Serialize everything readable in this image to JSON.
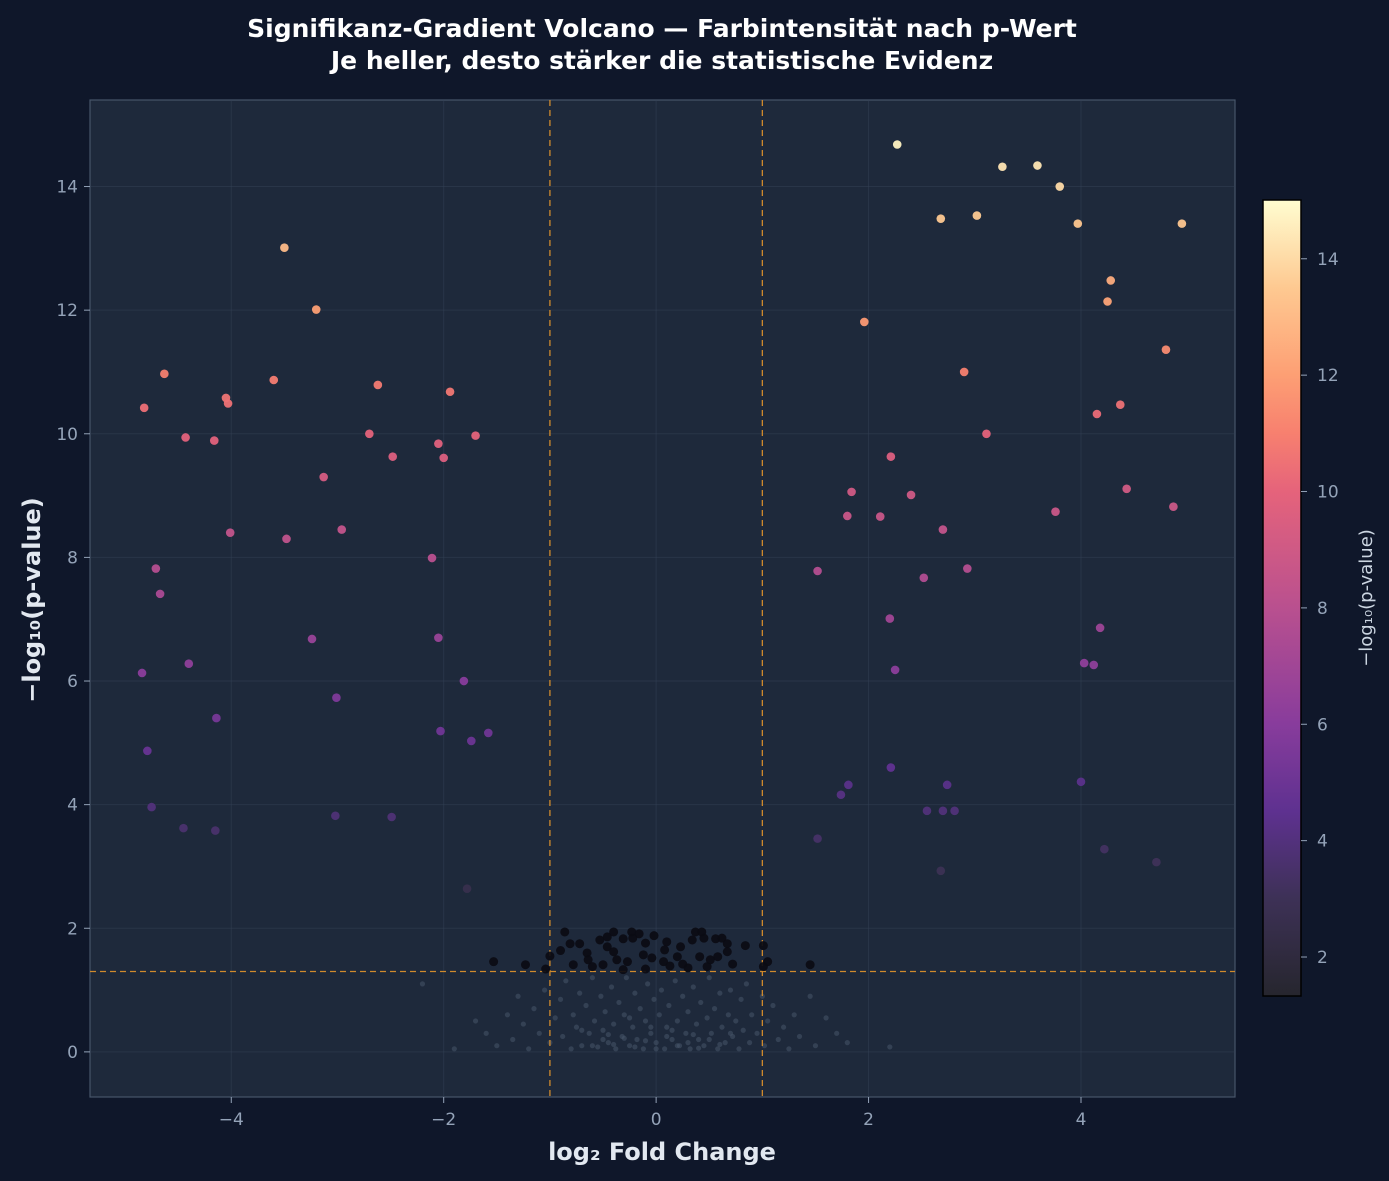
{
  "chart_data": {
    "type": "scatter",
    "title": "Signifikanz-Gradient Volcano — Farbintensität nach p-Wert",
    "subtitle": "Je heller, desto stärker die statistische Evidenz",
    "xlabel": "log₂ Fold Change",
    "ylabel": "−log₁₀(p-value)",
    "xlim": [
      -5.33,
      5.45
    ],
    "ylim": [
      -0.73,
      15.4
    ],
    "x_ticks": [
      -4,
      -2,
      0,
      2,
      4
    ],
    "x_tick_labels": [
      "−4",
      "−2",
      "0",
      "2",
      "4"
    ],
    "y_ticks": [
      0,
      2,
      4,
      6,
      8,
      10,
      12,
      14
    ],
    "y_tick_labels": [
      "0",
      "2",
      "4",
      "6",
      "8",
      "10",
      "12",
      "14"
    ],
    "grid": true,
    "thresholds": {
      "fold_change": [
        -1,
        1
      ],
      "neg_log10_p": 1.3,
      "color": "#d08a2c"
    },
    "colorbar": {
      "label": "−log₁₀(p-value)",
      "range": [
        1.33,
        15.01
      ],
      "ticks": [
        2,
        4,
        6,
        8,
        10,
        12,
        14
      ],
      "tick_labels": [
        "2",
        "4",
        "6",
        "8",
        "10",
        "12",
        "14"
      ],
      "stops": [
        [
          1.33,
          "#26262e"
        ],
        [
          3,
          "#3d3156"
        ],
        [
          4.5,
          "#5e3190"
        ],
        [
          6,
          "#883c9c"
        ],
        [
          8,
          "#b9508f"
        ],
        [
          10,
          "#e5637b"
        ],
        [
          11,
          "#f7806f"
        ],
        [
          12,
          "#fd9f74"
        ],
        [
          13.5,
          "#fec991"
        ],
        [
          15.01,
          "#fffdd0"
        ]
      ]
    },
    "series": [
      {
        "role": "significant",
        "color_by": "neg_log10_p",
        "points": [
          [
            -3.5,
            13.01
          ],
          [
            -3.2,
            12.01
          ],
          [
            -4.63,
            10.97
          ],
          [
            -4.82,
            10.42
          ],
          [
            -4.05,
            10.58
          ],
          [
            -4.03,
            10.49
          ],
          [
            -3.6,
            10.87
          ],
          [
            -4.43,
            9.94
          ],
          [
            -4.16,
            9.89
          ],
          [
            -2.62,
            10.79
          ],
          [
            -1.94,
            10.68
          ],
          [
            -2.7,
            10.0
          ],
          [
            -2.05,
            9.84
          ],
          [
            -1.7,
            9.97
          ],
          [
            -2.48,
            9.63
          ],
          [
            -2.0,
            9.61
          ],
          [
            -3.13,
            9.3
          ],
          [
            -4.01,
            8.4
          ],
          [
            -3.48,
            8.3
          ],
          [
            -2.96,
            8.45
          ],
          [
            -2.11,
            7.99
          ],
          [
            -4.71,
            7.82
          ],
          [
            -4.67,
            7.41
          ],
          [
            -3.24,
            6.68
          ],
          [
            -2.05,
            6.7
          ],
          [
            -4.84,
            6.13
          ],
          [
            -4.4,
            6.28
          ],
          [
            -1.81,
            6.0
          ],
          [
            -3.01,
            5.73
          ],
          [
            -4.14,
            5.4
          ],
          [
            -2.03,
            5.19
          ],
          [
            -1.74,
            5.03
          ],
          [
            -1.58,
            5.16
          ],
          [
            -4.79,
            4.87
          ],
          [
            -4.75,
            3.96
          ],
          [
            -4.45,
            3.62
          ],
          [
            -4.15,
            3.58
          ],
          [
            -3.02,
            3.82
          ],
          [
            -2.49,
            3.8
          ],
          [
            -1.78,
            2.64
          ],
          [
            2.27,
            14.68
          ],
          [
            3.26,
            14.32
          ],
          [
            3.59,
            14.34
          ],
          [
            3.8,
            14.0
          ],
          [
            2.68,
            13.48
          ],
          [
            3.02,
            13.53
          ],
          [
            3.97,
            13.4
          ],
          [
            4.95,
            13.4
          ],
          [
            4.28,
            12.48
          ],
          [
            4.25,
            12.14
          ],
          [
            1.96,
            11.81
          ],
          [
            4.8,
            11.36
          ],
          [
            2.9,
            11.0
          ],
          [
            4.37,
            10.47
          ],
          [
            4.15,
            10.32
          ],
          [
            3.11,
            10.0
          ],
          [
            2.21,
            9.63
          ],
          [
            4.43,
            9.11
          ],
          [
            1.84,
            9.06
          ],
          [
            2.4,
            9.01
          ],
          [
            4.87,
            8.82
          ],
          [
            3.76,
            8.74
          ],
          [
            1.8,
            8.67
          ],
          [
            2.11,
            8.66
          ],
          [
            2.7,
            8.45
          ],
          [
            1.52,
            7.78
          ],
          [
            2.93,
            7.82
          ],
          [
            2.52,
            7.67
          ],
          [
            2.2,
            7.01
          ],
          [
            4.18,
            6.86
          ],
          [
            2.25,
            6.18
          ],
          [
            4.03,
            6.29
          ],
          [
            4.12,
            6.26
          ],
          [
            2.21,
            4.6
          ],
          [
            1.81,
            4.32
          ],
          [
            1.74,
            4.16
          ],
          [
            2.74,
            4.32
          ],
          [
            2.55,
            3.9
          ],
          [
            2.7,
            3.9
          ],
          [
            2.81,
            3.9
          ],
          [
            4.0,
            4.37
          ],
          [
            1.52,
            3.45
          ],
          [
            4.22,
            3.28
          ],
          [
            4.71,
            3.07
          ],
          [
            2.68,
            2.93
          ]
        ]
      },
      {
        "role": "near-threshold",
        "color": "#0b0b14",
        "points": [
          [
            -1.53,
            1.46
          ],
          [
            -1.23,
            1.41
          ],
          [
            -1.04,
            1.34
          ],
          [
            -1.0,
            1.55
          ],
          [
            -0.9,
            1.64
          ],
          [
            -0.86,
            1.94
          ],
          [
            -0.81,
            1.75
          ],
          [
            -0.72,
            1.75
          ],
          [
            -0.78,
            1.41
          ],
          [
            -0.65,
            1.6
          ],
          [
            -0.6,
            1.38
          ],
          [
            -0.53,
            1.81
          ],
          [
            -0.46,
            1.86
          ],
          [
            -0.4,
            1.94
          ],
          [
            -0.46,
            1.7
          ],
          [
            -0.4,
            1.62
          ],
          [
            -0.31,
            1.83
          ],
          [
            -0.31,
            1.33
          ],
          [
            -0.23,
            1.94
          ],
          [
            -0.16,
            1.91
          ],
          [
            -0.22,
            1.84
          ],
          [
            -0.1,
            1.76
          ],
          [
            -0.02,
            1.88
          ],
          [
            -0.12,
            1.57
          ],
          [
            -0.04,
            1.52
          ],
          [
            -0.1,
            1.34
          ],
          [
            0.1,
            1.78
          ],
          [
            0.08,
            1.65
          ],
          [
            0.23,
            1.7
          ],
          [
            0.2,
            1.54
          ],
          [
            0.3,
            1.36
          ],
          [
            0.34,
            1.81
          ],
          [
            0.37,
            1.94
          ],
          [
            0.43,
            1.94
          ],
          [
            0.45,
            1.84
          ],
          [
            0.41,
            1.54
          ],
          [
            0.48,
            1.38
          ],
          [
            0.56,
            1.83
          ],
          [
            0.62,
            1.84
          ],
          [
            0.67,
            1.75
          ],
          [
            0.58,
            1.54
          ],
          [
            0.67,
            1.62
          ],
          [
            0.72,
            1.42
          ],
          [
            0.84,
            1.72
          ],
          [
            1.01,
            1.72
          ],
          [
            1.05,
            1.46
          ],
          [
            1.01,
            1.38
          ],
          [
            1.45,
            1.41
          ],
          [
            -0.37,
            1.49
          ],
          [
            -0.64,
            1.49
          ],
          [
            -0.5,
            1.41
          ],
          [
            -0.27,
            1.46
          ],
          [
            0.07,
            1.46
          ],
          [
            0.13,
            1.39
          ],
          [
            0.25,
            1.42
          ],
          [
            0.51,
            1.49
          ]
        ]
      },
      {
        "role": "not-significant",
        "color": "#475569",
        "points": [
          [
            -2.2,
            1.1
          ],
          [
            -1.9,
            0.05
          ],
          [
            -1.7,
            0.5
          ],
          [
            -1.6,
            0.3
          ],
          [
            -1.5,
            0.1
          ],
          [
            -1.4,
            0.6
          ],
          [
            -1.35,
            0.2
          ],
          [
            -1.3,
            0.9
          ],
          [
            -1.25,
            0.45
          ],
          [
            -1.2,
            0.05
          ],
          [
            -1.15,
            0.7
          ],
          [
            -1.1,
            0.3
          ],
          [
            -1.05,
            1.0
          ],
          [
            -1.0,
            0.15
          ],
          [
            -0.95,
            0.55
          ],
          [
            -0.9,
            0.85
          ],
          [
            -0.88,
            0.25
          ],
          [
            -0.85,
            1.15
          ],
          [
            -0.8,
            0.05
          ],
          [
            -0.78,
            0.6
          ],
          [
            -0.75,
            0.4
          ],
          [
            -0.72,
            0.95
          ],
          [
            -0.7,
            0.1
          ],
          [
            -0.66,
            0.75
          ],
          [
            -0.63,
            0.3
          ],
          [
            -0.6,
            1.2
          ],
          [
            -0.58,
            0.5
          ],
          [
            -0.55,
            0.08
          ],
          [
            -0.52,
            0.9
          ],
          [
            -0.5,
            0.35
          ],
          [
            -0.48,
            0.65
          ],
          [
            -0.45,
            0.15
          ],
          [
            -0.42,
            1.05
          ],
          [
            -0.4,
            0.45
          ],
          [
            -0.38,
            0.05
          ],
          [
            -0.35,
            0.8
          ],
          [
            -0.32,
            0.25
          ],
          [
            -0.3,
            0.6
          ],
          [
            -0.28,
            1.2
          ],
          [
            -0.25,
            0.1
          ],
          [
            -0.22,
            0.4
          ],
          [
            -0.2,
            0.95
          ],
          [
            -0.18,
            0.2
          ],
          [
            -0.15,
            0.7
          ],
          [
            -0.12,
            0.05
          ],
          [
            -0.1,
            0.5
          ],
          [
            -0.08,
            1.1
          ],
          [
            -0.05,
            0.3
          ],
          [
            -0.02,
            0.85
          ],
          [
            0.0,
            0.15
          ],
          [
            0.03,
            0.6
          ],
          [
            0.05,
            1.0
          ],
          [
            0.08,
            0.05
          ],
          [
            0.1,
            0.4
          ],
          [
            0.12,
            0.75
          ],
          [
            0.15,
            0.2
          ],
          [
            0.18,
            1.15
          ],
          [
            0.2,
            0.5
          ],
          [
            0.22,
            0.1
          ],
          [
            0.25,
            0.9
          ],
          [
            0.28,
            0.3
          ],
          [
            0.3,
            0.65
          ],
          [
            0.32,
            0.05
          ],
          [
            0.35,
            1.05
          ],
          [
            0.38,
            0.45
          ],
          [
            0.4,
            0.2
          ],
          [
            0.42,
            0.8
          ],
          [
            0.45,
            0.1
          ],
          [
            0.48,
            0.55
          ],
          [
            0.5,
            1.2
          ],
          [
            0.52,
            0.3
          ],
          [
            0.55,
            0.7
          ],
          [
            0.58,
            0.05
          ],
          [
            0.6,
            0.95
          ],
          [
            0.62,
            0.4
          ],
          [
            0.65,
            0.15
          ],
          [
            0.68,
            0.6
          ],
          [
            0.7,
            1.0
          ],
          [
            0.72,
            0.25
          ],
          [
            0.75,
            0.5
          ],
          [
            0.78,
            0.05
          ],
          [
            0.8,
            0.85
          ],
          [
            0.82,
            0.35
          ],
          [
            0.85,
            1.1
          ],
          [
            0.88,
            0.15
          ],
          [
            0.9,
            0.6
          ],
          [
            0.95,
            0.3
          ],
          [
            1.0,
            0.9
          ],
          [
            1.02,
            0.1
          ],
          [
            1.05,
            0.5
          ],
          [
            1.1,
            0.75
          ],
          [
            1.15,
            0.2
          ],
          [
            1.2,
            0.4
          ],
          [
            1.25,
            0.05
          ],
          [
            1.3,
            0.6
          ],
          [
            1.35,
            0.25
          ],
          [
            1.45,
            0.9
          ],
          [
            1.5,
            0.1
          ],
          [
            1.6,
            0.55
          ],
          [
            1.7,
            0.3
          ],
          [
            1.8,
            0.15
          ],
          [
            2.2,
            0.08
          ],
          [
            -0.6,
            0.1
          ],
          [
            -0.4,
            0.12
          ],
          [
            -0.2,
            0.08
          ],
          [
            0.0,
            0.05
          ],
          [
            0.2,
            0.1
          ],
          [
            0.4,
            0.06
          ],
          [
            0.6,
            0.12
          ],
          [
            -0.5,
            0.2
          ],
          [
            -0.3,
            0.22
          ],
          [
            -0.1,
            0.18
          ],
          [
            0.1,
            0.25
          ],
          [
            0.3,
            0.15
          ],
          [
            0.5,
            0.2
          ],
          [
            -0.7,
            0.35
          ],
          [
            0.7,
            0.3
          ],
          [
            -0.25,
            0.55
          ],
          [
            0.15,
            0.35
          ],
          [
            0.35,
            0.28
          ],
          [
            -0.45,
            0.28
          ],
          [
            -0.05,
            0.4
          ]
        ]
      }
    ]
  }
}
